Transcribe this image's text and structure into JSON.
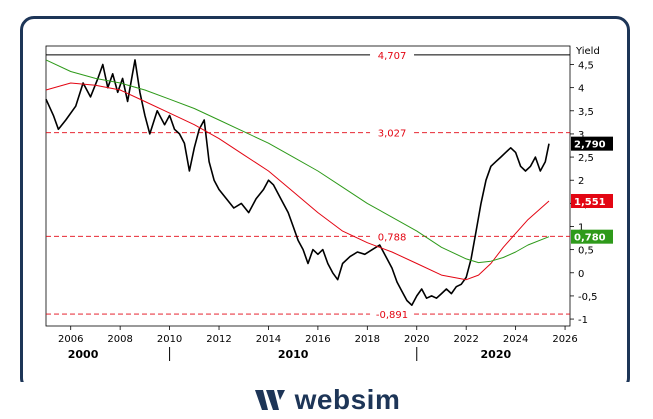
{
  "brand": {
    "name": "websim"
  },
  "colors": {
    "price": "#000000",
    "ma_short": "#e30613",
    "ma_long": "#2e9a1a",
    "level": "#e30613",
    "frame": "#1d3557"
  },
  "chart_data": {
    "type": "line",
    "ylabel": "Yield",
    "xlim": [
      2005.0,
      2026.2
    ],
    "ylim": [
      -1.15,
      4.9
    ],
    "y_ticks": [
      {
        "v": 4.5,
        "t": "4,5"
      },
      {
        "v": 4,
        "t": "4"
      },
      {
        "v": 3.5,
        "t": "3,5"
      },
      {
        "v": 3,
        "t": "3"
      },
      {
        "v": 2.5,
        "t": "2,5"
      },
      {
        "v": 2,
        "t": "2"
      },
      {
        "v": 1.5,
        "t": "1,5"
      },
      {
        "v": 1,
        "t": "1"
      },
      {
        "v": 0.5,
        "t": "0,5"
      },
      {
        "v": 0,
        "t": "0"
      },
      {
        "v": -0.5,
        "t": "-0,5"
      },
      {
        "v": -1,
        "t": "-1"
      }
    ],
    "x_ticks": [
      "2006",
      "2008",
      "2010",
      "2012",
      "2014",
      "2016",
      "2018",
      "2020",
      "2022",
      "2024",
      "2026"
    ],
    "x_tick_values": [
      2006,
      2008,
      2010,
      2012,
      2014,
      2016,
      2018,
      2020,
      2022,
      2024,
      2026
    ],
    "decades": [
      {
        "label": "2000",
        "x": 2006.5
      },
      {
        "label": "2010",
        "x": 2015.0
      },
      {
        "label": "2020",
        "x": 2023.2
      }
    ],
    "decade_separators": [
      2010.0,
      2020.0
    ],
    "levels": [
      {
        "value": 4.707,
        "label": "4,707",
        "solid": true
      },
      {
        "value": 3.027,
        "label": "3,027",
        "solid": false
      },
      {
        "value": 0.788,
        "label": "0,788",
        "solid": false
      },
      {
        "value": -0.891,
        "label": "-0,891",
        "solid": false
      }
    ],
    "badges": [
      {
        "value": 2.79,
        "label": "2,790",
        "color": "#000000"
      },
      {
        "value": 1.551,
        "label": "1,551",
        "color": "#e30613"
      },
      {
        "value": 0.78,
        "label": "0,780",
        "color": "#2e9a1a"
      }
    ],
    "series": [
      {
        "key": "price",
        "points": [
          [
            2005.0,
            3.75
          ],
          [
            2005.3,
            3.4
          ],
          [
            2005.5,
            3.1
          ],
          [
            2005.8,
            3.3
          ],
          [
            2006.2,
            3.6
          ],
          [
            2006.5,
            4.1
          ],
          [
            2006.8,
            3.8
          ],
          [
            2007.1,
            4.2
          ],
          [
            2007.3,
            4.5
          ],
          [
            2007.5,
            4.0
          ],
          [
            2007.7,
            4.3
          ],
          [
            2007.9,
            3.9
          ],
          [
            2008.1,
            4.2
          ],
          [
            2008.3,
            3.7
          ],
          [
            2008.5,
            4.3
          ],
          [
            2008.6,
            4.6
          ],
          [
            2008.8,
            3.9
          ],
          [
            2009.0,
            3.4
          ],
          [
            2009.2,
            3.0
          ],
          [
            2009.5,
            3.5
          ],
          [
            2009.8,
            3.2
          ],
          [
            2010.0,
            3.4
          ],
          [
            2010.2,
            3.1
          ],
          [
            2010.4,
            3.0
          ],
          [
            2010.6,
            2.8
          ],
          [
            2010.8,
            2.2
          ],
          [
            2011.0,
            2.7
          ],
          [
            2011.2,
            3.1
          ],
          [
            2011.4,
            3.3
          ],
          [
            2011.6,
            2.4
          ],
          [
            2011.8,
            2.0
          ],
          [
            2012.0,
            1.8
          ],
          [
            2012.3,
            1.6
          ],
          [
            2012.6,
            1.4
          ],
          [
            2012.9,
            1.5
          ],
          [
            2013.2,
            1.3
          ],
          [
            2013.5,
            1.6
          ],
          [
            2013.8,
            1.8
          ],
          [
            2014.0,
            2.0
          ],
          [
            2014.2,
            1.9
          ],
          [
            2014.5,
            1.6
          ],
          [
            2014.8,
            1.3
          ],
          [
            2015.0,
            1.0
          ],
          [
            2015.2,
            0.7
          ],
          [
            2015.4,
            0.5
          ],
          [
            2015.6,
            0.2
          ],
          [
            2015.8,
            0.5
          ],
          [
            2016.0,
            0.4
          ],
          [
            2016.2,
            0.5
          ],
          [
            2016.4,
            0.2
          ],
          [
            2016.6,
            0.0
          ],
          [
            2016.8,
            -0.15
          ],
          [
            2017.0,
            0.2
          ],
          [
            2017.3,
            0.35
          ],
          [
            2017.6,
            0.45
          ],
          [
            2017.9,
            0.4
          ],
          [
            2018.2,
            0.5
          ],
          [
            2018.5,
            0.6
          ],
          [
            2018.8,
            0.3
          ],
          [
            2019.0,
            0.1
          ],
          [
            2019.2,
            -0.2
          ],
          [
            2019.4,
            -0.4
          ],
          [
            2019.6,
            -0.6
          ],
          [
            2019.8,
            -0.7
          ],
          [
            2020.0,
            -0.5
          ],
          [
            2020.2,
            -0.35
          ],
          [
            2020.4,
            -0.55
          ],
          [
            2020.6,
            -0.5
          ],
          [
            2020.8,
            -0.55
          ],
          [
            2021.0,
            -0.45
          ],
          [
            2021.2,
            -0.35
          ],
          [
            2021.4,
            -0.45
          ],
          [
            2021.6,
            -0.3
          ],
          [
            2021.8,
            -0.25
          ],
          [
            2022.0,
            -0.1
          ],
          [
            2022.2,
            0.3
          ],
          [
            2022.4,
            0.9
          ],
          [
            2022.6,
            1.5
          ],
          [
            2022.8,
            2.0
          ],
          [
            2023.0,
            2.3
          ],
          [
            2023.2,
            2.4
          ],
          [
            2023.4,
            2.5
          ],
          [
            2023.6,
            2.6
          ],
          [
            2023.8,
            2.7
          ],
          [
            2024.0,
            2.6
          ],
          [
            2024.2,
            2.3
          ],
          [
            2024.4,
            2.2
          ],
          [
            2024.6,
            2.3
          ],
          [
            2024.8,
            2.5
          ],
          [
            2025.0,
            2.2
          ],
          [
            2025.2,
            2.4
          ],
          [
            2025.35,
            2.79
          ]
        ]
      },
      {
        "key": "ma_short",
        "points": [
          [
            2005.0,
            3.95
          ],
          [
            2006.0,
            4.1
          ],
          [
            2007.0,
            4.05
          ],
          [
            2008.0,
            3.95
          ],
          [
            2009.0,
            3.7
          ],
          [
            2010.0,
            3.45
          ],
          [
            2011.0,
            3.2
          ],
          [
            2012.0,
            2.9
          ],
          [
            2013.0,
            2.55
          ],
          [
            2014.0,
            2.2
          ],
          [
            2015.0,
            1.75
          ],
          [
            2016.0,
            1.3
          ],
          [
            2017.0,
            0.9
          ],
          [
            2018.0,
            0.65
          ],
          [
            2019.0,
            0.45
          ],
          [
            2020.0,
            0.2
          ],
          [
            2021.0,
            -0.05
          ],
          [
            2022.0,
            -0.15
          ],
          [
            2022.5,
            -0.05
          ],
          [
            2023.0,
            0.2
          ],
          [
            2023.5,
            0.55
          ],
          [
            2024.0,
            0.85
          ],
          [
            2024.5,
            1.15
          ],
          [
            2025.35,
            1.551
          ]
        ]
      },
      {
        "key": "ma_long",
        "points": [
          [
            2005.0,
            4.6
          ],
          [
            2006.0,
            4.35
          ],
          [
            2007.0,
            4.2
          ],
          [
            2008.0,
            4.1
          ],
          [
            2009.0,
            3.95
          ],
          [
            2010.0,
            3.75
          ],
          [
            2011.0,
            3.55
          ],
          [
            2012.0,
            3.3
          ],
          [
            2013.0,
            3.05
          ],
          [
            2014.0,
            2.8
          ],
          [
            2015.0,
            2.5
          ],
          [
            2016.0,
            2.2
          ],
          [
            2017.0,
            1.85
          ],
          [
            2018.0,
            1.5
          ],
          [
            2019.0,
            1.2
          ],
          [
            2020.0,
            0.9
          ],
          [
            2021.0,
            0.55
          ],
          [
            2022.0,
            0.3
          ],
          [
            2022.5,
            0.22
          ],
          [
            2023.0,
            0.25
          ],
          [
            2023.5,
            0.33
          ],
          [
            2024.0,
            0.45
          ],
          [
            2024.5,
            0.6
          ],
          [
            2025.35,
            0.78
          ]
        ]
      }
    ]
  }
}
